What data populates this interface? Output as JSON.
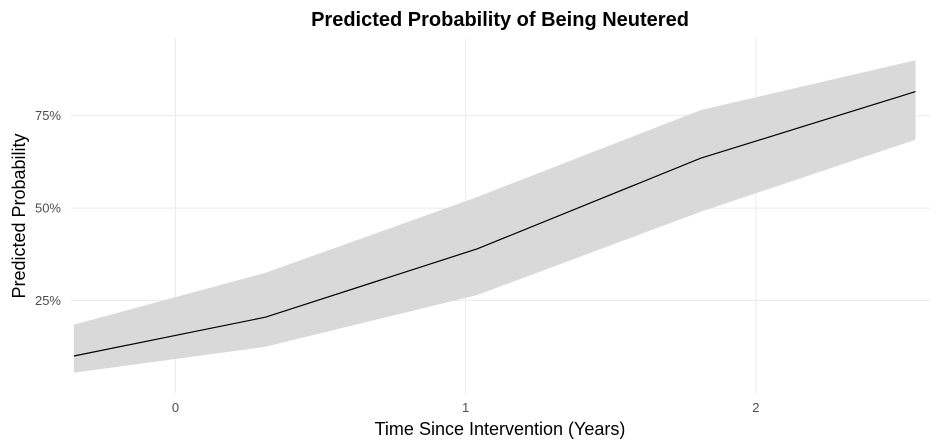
{
  "chart_data": {
    "type": "line",
    "title": "Predicted Probability of Being Neutered",
    "xlabel": "Time Since Intervention (Years)",
    "ylabel": "Predicted Probability",
    "x_ticks": [
      "0",
      "1",
      "2"
    ],
    "y_ticks": [
      "25%",
      "50%",
      "75%"
    ],
    "xlim": [
      -0.36,
      2.6
    ],
    "ylim": [
      0.0,
      0.96
    ],
    "grid": true,
    "legend": "none",
    "series": [
      {
        "x": [
          -0.35,
          0.31,
          1.04,
          1.81,
          2.55
        ],
        "y": [
          0.1,
          0.205,
          0.39,
          0.635,
          0.815
        ],
        "lower": [
          0.055,
          0.125,
          0.265,
          0.49,
          0.685
        ],
        "upper": [
          0.185,
          0.325,
          0.53,
          0.765,
          0.9
        ]
      }
    ],
    "colors": {
      "ribbon": "#d9d9d9",
      "line": "#000000",
      "grid": "#ebebeb"
    }
  }
}
